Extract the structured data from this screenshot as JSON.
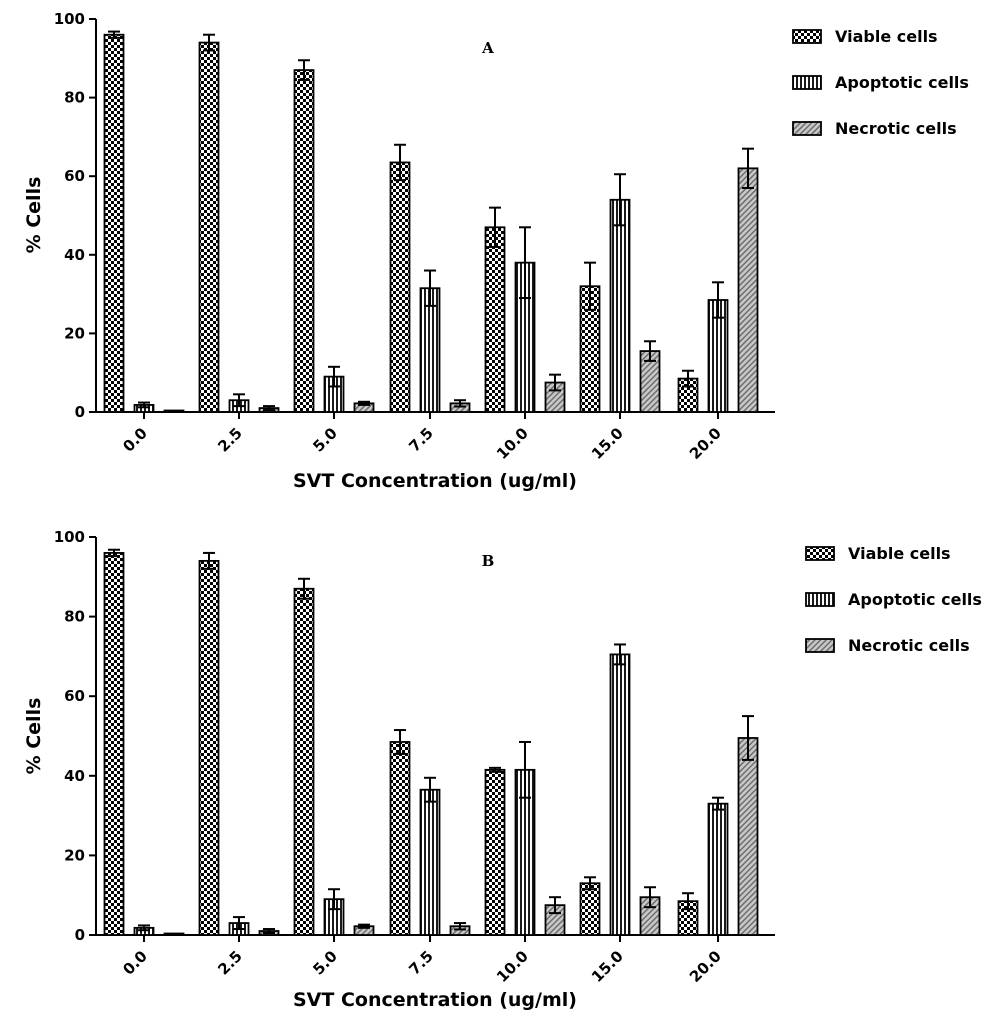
{
  "chart_data": [
    {
      "type": "bar",
      "panel_label": "A",
      "xlabel": "SVT Concentration (ug/ml)",
      "ylabel": "% Cells",
      "ylim": [
        0,
        100
      ],
      "yticks": [
        0,
        20,
        40,
        60,
        80,
        100
      ],
      "categories": [
        "0.0",
        "2.5",
        "5.0",
        "7.5",
        "10.0",
        "15.0",
        "20.0"
      ],
      "legend_position": "top-right",
      "series": [
        {
          "name": "Viable cells",
          "pattern": "checker",
          "values": [
            96,
            94,
            87,
            63.5,
            47,
            32,
            8.5
          ],
          "errors": [
            0.8,
            2,
            2.5,
            4.5,
            5,
            6,
            2
          ]
        },
        {
          "name": "Apoptotic cells",
          "pattern": "vertical-lines",
          "values": [
            1.8,
            3,
            9,
            31.5,
            38,
            54,
            28.5
          ],
          "errors": [
            0.6,
            1.5,
            2.5,
            4.5,
            9,
            6.5,
            4.5
          ]
        },
        {
          "name": "Necrotic cells",
          "pattern": "diagonal-lines",
          "values": [
            0.3,
            1,
            2.2,
            2.2,
            7.5,
            15.5,
            62
          ],
          "errors": [
            0.1,
            0.5,
            0.4,
            0.8,
            2,
            2.5,
            5
          ]
        }
      ]
    },
    {
      "type": "bar",
      "panel_label": "B",
      "xlabel": "SVT Concentration (ug/ml)",
      "ylabel": "% Cells",
      "ylim": [
        0,
        100
      ],
      "yticks": [
        0,
        20,
        40,
        60,
        80,
        100
      ],
      "categories": [
        "0.0",
        "2.5",
        "5.0",
        "7.5",
        "10.0",
        "15.0",
        "20.0"
      ],
      "legend_position": "top-right",
      "series": [
        {
          "name": "Viable cells",
          "pattern": "checker",
          "values": [
            96,
            94,
            87,
            48.5,
            41.5,
            13,
            8.5
          ],
          "errors": [
            0.8,
            2,
            2.5,
            3,
            0.5,
            1.5,
            2
          ]
        },
        {
          "name": "Apoptotic cells",
          "pattern": "vertical-lines",
          "values": [
            1.8,
            3,
            9,
            36.5,
            41.5,
            70.5,
            33
          ],
          "errors": [
            0.6,
            1.5,
            2.5,
            3,
            7,
            2.5,
            1.5
          ]
        },
        {
          "name": "Necrotic cells",
          "pattern": "diagonal-lines",
          "values": [
            0.3,
            1,
            2.2,
            2.2,
            7.5,
            9.5,
            49.5
          ],
          "errors": [
            0.1,
            0.5,
            0.4,
            0.8,
            2,
            2.5,
            5.5
          ]
        }
      ]
    }
  ]
}
